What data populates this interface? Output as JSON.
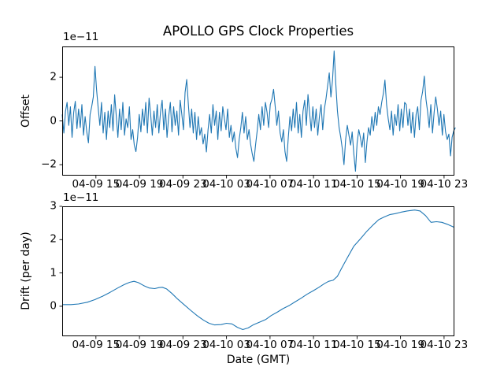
{
  "title": "APOLLO GPS Clock Properties",
  "colors": {
    "line": "#1f77b4",
    "spine": "#000000",
    "background": "#ffffff",
    "text": "#000000"
  },
  "chart_data": [
    {
      "type": "line",
      "name": "offset-plot",
      "title": "APOLLO GPS Clock Properties",
      "ylabel": "Offset",
      "offset_text": "1e−11",
      "grid": false,
      "legend": "none",
      "y_ticks": [
        2,
        0,
        -2
      ],
      "y_tick_labels": [
        "2",
        "0",
        "−2"
      ],
      "ylim": [
        -2.5,
        3.41
      ],
      "x_ticks_hours": [
        15,
        19,
        23,
        27,
        31,
        35,
        39,
        43,
        47
      ],
      "x_tick_labels": [
        "04-09 15",
        "04-09 19",
        "04-09 23",
        "04-10 03",
        "04-10 07",
        "04-10 11",
        "04-10 15",
        "04-10 19",
        "04-10 23"
      ],
      "xlim_hours": [
        11.9,
        47.95
      ],
      "series": [
        {
          "name": "offset",
          "color": "#1f77b4",
          "unit_scale": "1e-11",
          "x_start_hours": 11.9,
          "x_step_hours": 0.1506,
          "values": [
            0.3,
            -0.55,
            0.45,
            0.85,
            -0.2,
            0.65,
            -0.75,
            0.4,
            0.9,
            -0.35,
            0.55,
            -0.3,
            0.75,
            -0.65,
            0.2,
            -0.5,
            -1.0,
            0.3,
            0.65,
            1.1,
            2.5,
            1.4,
            0.55,
            -0.2,
            0.85,
            -0.55,
            0.4,
            -0.85,
            0.45,
            -0.3,
            0.75,
            -0.45,
            1.2,
            0.2,
            -0.75,
            0.55,
            -0.4,
            0.85,
            -0.65,
            0.1,
            -0.3,
            0.65,
            -0.85,
            -0.4,
            -1.1,
            -1.4,
            -0.75,
            0.3,
            -0.5,
            0.55,
            -0.2,
            0.85,
            -0.55,
            1.05,
            0.3,
            -0.65,
            0.45,
            -0.3,
            0.75,
            -0.55,
            0.4,
            0.95,
            -0.4,
            0.55,
            -0.75,
            0.2,
            0.85,
            -0.5,
            0.65,
            -0.2,
            0.45,
            -0.65,
            0.95,
            0.3,
            -0.4,
            1.3,
            1.9,
            0.75,
            -0.3,
            0.55,
            -0.55,
            0.4,
            -0.85,
            0.2,
            -0.65,
            -0.3,
            -1.05,
            -0.6,
            -1.42,
            -0.4,
            0.3,
            -0.55,
            0.75,
            -0.2,
            0.45,
            -0.85,
            0.4,
            -0.45,
            0.65,
            0.1,
            -0.4,
            0.55,
            -0.75,
            -0.2,
            -0.95,
            -0.5,
            -1.25,
            -1.68,
            -0.85,
            -0.3,
            0.4,
            -0.55,
            0.2,
            -0.85,
            -0.4,
            -1.05,
            -1.5,
            -1.85,
            -1.1,
            -0.45,
            0.3,
            -0.4,
            0.65,
            -0.2,
            0.85,
            0.4,
            -0.3,
            0.75,
            1.0,
            1.45,
            0.65,
            -0.2,
            0.45,
            -0.55,
            -0.95,
            -0.4,
            -1.4,
            -1.85,
            -0.75,
            0.2,
            -0.45,
            0.55,
            -0.3,
            0.85,
            -0.55,
            0.3,
            -0.75,
            0.45,
            0.95,
            -0.2,
            1.21,
            0.4,
            -0.45,
            0.65,
            -0.3,
            0.55,
            -0.65,
            0.2,
            0.75,
            -0.4,
            0.55,
            1.0,
            1.6,
            2.2,
            1.1,
            1.9,
            3.2,
            1.7,
            0.45,
            -0.3,
            -0.75,
            -1.3,
            -2.0,
            -0.85,
            -0.2,
            -0.65,
            -1.1,
            -0.5,
            -1.5,
            -2.3,
            -1.0,
            -0.4,
            -0.75,
            -1.2,
            -0.55,
            -1.9,
            -0.95,
            -0.3,
            -0.65,
            0.2,
            -0.45,
            0.4,
            -0.2,
            0.65,
            0.3,
            0.85,
            1.25,
            1.87,
            0.75,
            0.1,
            -0.4,
            0.45,
            -0.65,
            0.3,
            -0.2,
            0.75,
            -0.45,
            0.55,
            -0.3,
            0.85,
            0.75,
            -0.2,
            0.55,
            -0.55,
            0.4,
            -0.75,
            0.3,
            0.65,
            -0.4,
            0.95,
            1.35,
            2.05,
            1.0,
            0.45,
            -0.3,
            0.75,
            -0.55,
            0.4,
            1.1,
            0.55,
            -0.2,
            0.45,
            -0.65,
            0.3,
            -0.5,
            -0.85,
            -0.6,
            -1.6,
            -0.75,
            -0.45,
            -0.3
          ]
        }
      ]
    },
    {
      "type": "line",
      "name": "drift-plot",
      "ylabel": "Drift (per day)",
      "xlabel": "Date (GMT)",
      "offset_text": "1e−11",
      "grid": false,
      "legend": "none",
      "y_ticks": [
        3,
        2,
        1,
        0
      ],
      "y_tick_labels": [
        "3",
        "2",
        "1",
        "0"
      ],
      "ylim": [
        -0.9,
        3.0
      ],
      "x_ticks_hours": [
        15,
        19,
        23,
        27,
        31,
        35,
        39,
        43,
        47
      ],
      "x_tick_labels": [
        "04-09 15",
        "04-09 19",
        "04-09 23",
        "04-10 03",
        "04-10 07",
        "04-10 11",
        "04-10 15",
        "04-10 19",
        "04-10 23"
      ],
      "xlim_hours": [
        11.9,
        47.95
      ],
      "series": [
        {
          "name": "drift",
          "color": "#1f77b4",
          "unit_scale": "1e-11",
          "points": [
            [
              11.9,
              0.05
            ],
            [
              12.7,
              0.05
            ],
            [
              13.4,
              0.07
            ],
            [
              14.2,
              0.12
            ],
            [
              14.9,
              0.2
            ],
            [
              15.6,
              0.3
            ],
            [
              16.3,
              0.42
            ],
            [
              17.0,
              0.55
            ],
            [
              17.6,
              0.65
            ],
            [
              18.1,
              0.72
            ],
            [
              18.5,
              0.75
            ],
            [
              18.9,
              0.71
            ],
            [
              19.4,
              0.62
            ],
            [
              19.9,
              0.55
            ],
            [
              20.4,
              0.53
            ],
            [
              20.8,
              0.56
            ],
            [
              21.1,
              0.57
            ],
            [
              21.5,
              0.52
            ],
            [
              22.0,
              0.38
            ],
            [
              22.5,
              0.22
            ],
            [
              23.1,
              0.05
            ],
            [
              23.7,
              -0.12
            ],
            [
              24.3,
              -0.28
            ],
            [
              24.9,
              -0.42
            ],
            [
              25.4,
              -0.51
            ],
            [
              25.9,
              -0.56
            ],
            [
              26.5,
              -0.55
            ],
            [
              27.0,
              -0.51
            ],
            [
              27.5,
              -0.53
            ],
            [
              28.0,
              -0.63
            ],
            [
              28.5,
              -0.7
            ],
            [
              29.0,
              -0.65
            ],
            [
              29.5,
              -0.55
            ],
            [
              30.1,
              -0.47
            ],
            [
              30.6,
              -0.4
            ],
            [
              31.1,
              -0.28
            ],
            [
              31.7,
              -0.17
            ],
            [
              32.2,
              -0.07
            ],
            [
              32.8,
              0.03
            ],
            [
              33.3,
              0.13
            ],
            [
              33.9,
              0.25
            ],
            [
              34.4,
              0.36
            ],
            [
              35.0,
              0.47
            ],
            [
              35.5,
              0.57
            ],
            [
              36.0,
              0.68
            ],
            [
              36.4,
              0.75
            ],
            [
              36.8,
              0.78
            ],
            [
              37.2,
              0.9
            ],
            [
              37.6,
              1.15
            ],
            [
              38.1,
              1.45
            ],
            [
              38.7,
              1.8
            ],
            [
              39.3,
              2.02
            ],
            [
              39.9,
              2.25
            ],
            [
              40.5,
              2.45
            ],
            [
              41.0,
              2.6
            ],
            [
              41.5,
              2.68
            ],
            [
              42.0,
              2.75
            ],
            [
              42.5,
              2.78
            ],
            [
              43.0,
              2.82
            ],
            [
              43.6,
              2.86
            ],
            [
              44.3,
              2.89
            ],
            [
              44.8,
              2.86
            ],
            [
              45.3,
              2.72
            ],
            [
              45.8,
              2.52
            ],
            [
              46.3,
              2.54
            ],
            [
              46.8,
              2.52
            ],
            [
              47.3,
              2.46
            ],
            [
              47.95,
              2.37
            ]
          ]
        }
      ]
    }
  ]
}
